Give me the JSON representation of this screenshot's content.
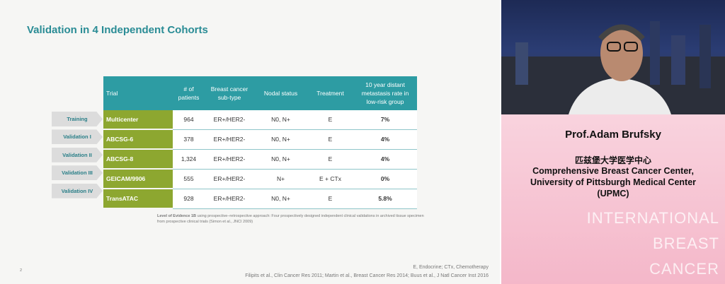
{
  "slide": {
    "title": "Validation in 4 Independent Cohorts",
    "table": {
      "header": [
        "Trial",
        "# of patients",
        "Breast cancer sub-type",
        "Nodal status",
        "Treatment",
        "10 year distant metastasis rate in low-risk group"
      ],
      "row_labels": [
        "Training",
        "Validation I",
        "Validation II",
        "Validation III",
        "Validation IV"
      ],
      "rows": [
        [
          "Multicenter",
          "964",
          "ER+/HER2-",
          "N0, N+",
          "E",
          "7%"
        ],
        [
          "ABCSG-6",
          "378",
          "ER+/HER2-",
          "N0, N+",
          "E",
          "4%"
        ],
        [
          "ABCSG-8",
          "1,324",
          "ER+/HER2-",
          "N0, N+",
          "E",
          "4%"
        ],
        [
          "GEICAM/9906",
          "555",
          "ER+/HER2-",
          "N+",
          "E + CTx",
          "0%"
        ],
        [
          "TransATAC",
          "928",
          "ER+/HER2-",
          "N0, N+",
          "E",
          "5.8%"
        ]
      ]
    },
    "footnote_bold": "Level of Evidence 1B",
    "footnote": "using prospective–retrospective approach: Four prospectively designed independent clinical validations in archived tissue specimen from prospective clinical trials (Simon et al., JNCI 2009)",
    "page_number": "2",
    "abbreviations": "E, Endocrine; CTx, Chemotherapy",
    "references": "Filipits et al., Clin Cancer Res 2011; Martin et al., Breast Cancer Res 2014; Buus et al., J Natl Cancer Inst 2016"
  },
  "speaker": {
    "name": "Prof.Adam Brufsky",
    "chinese_affiliation": "匹兹堡大学医学中心",
    "affiliation": [
      "Comprehensive Breast Cancer Center,",
      "University of Pittsburgh Medical Center",
      "(UPMC)"
    ],
    "watermark": [
      "INTERNATIONAL",
      "BREAST",
      "CANCER"
    ]
  }
}
